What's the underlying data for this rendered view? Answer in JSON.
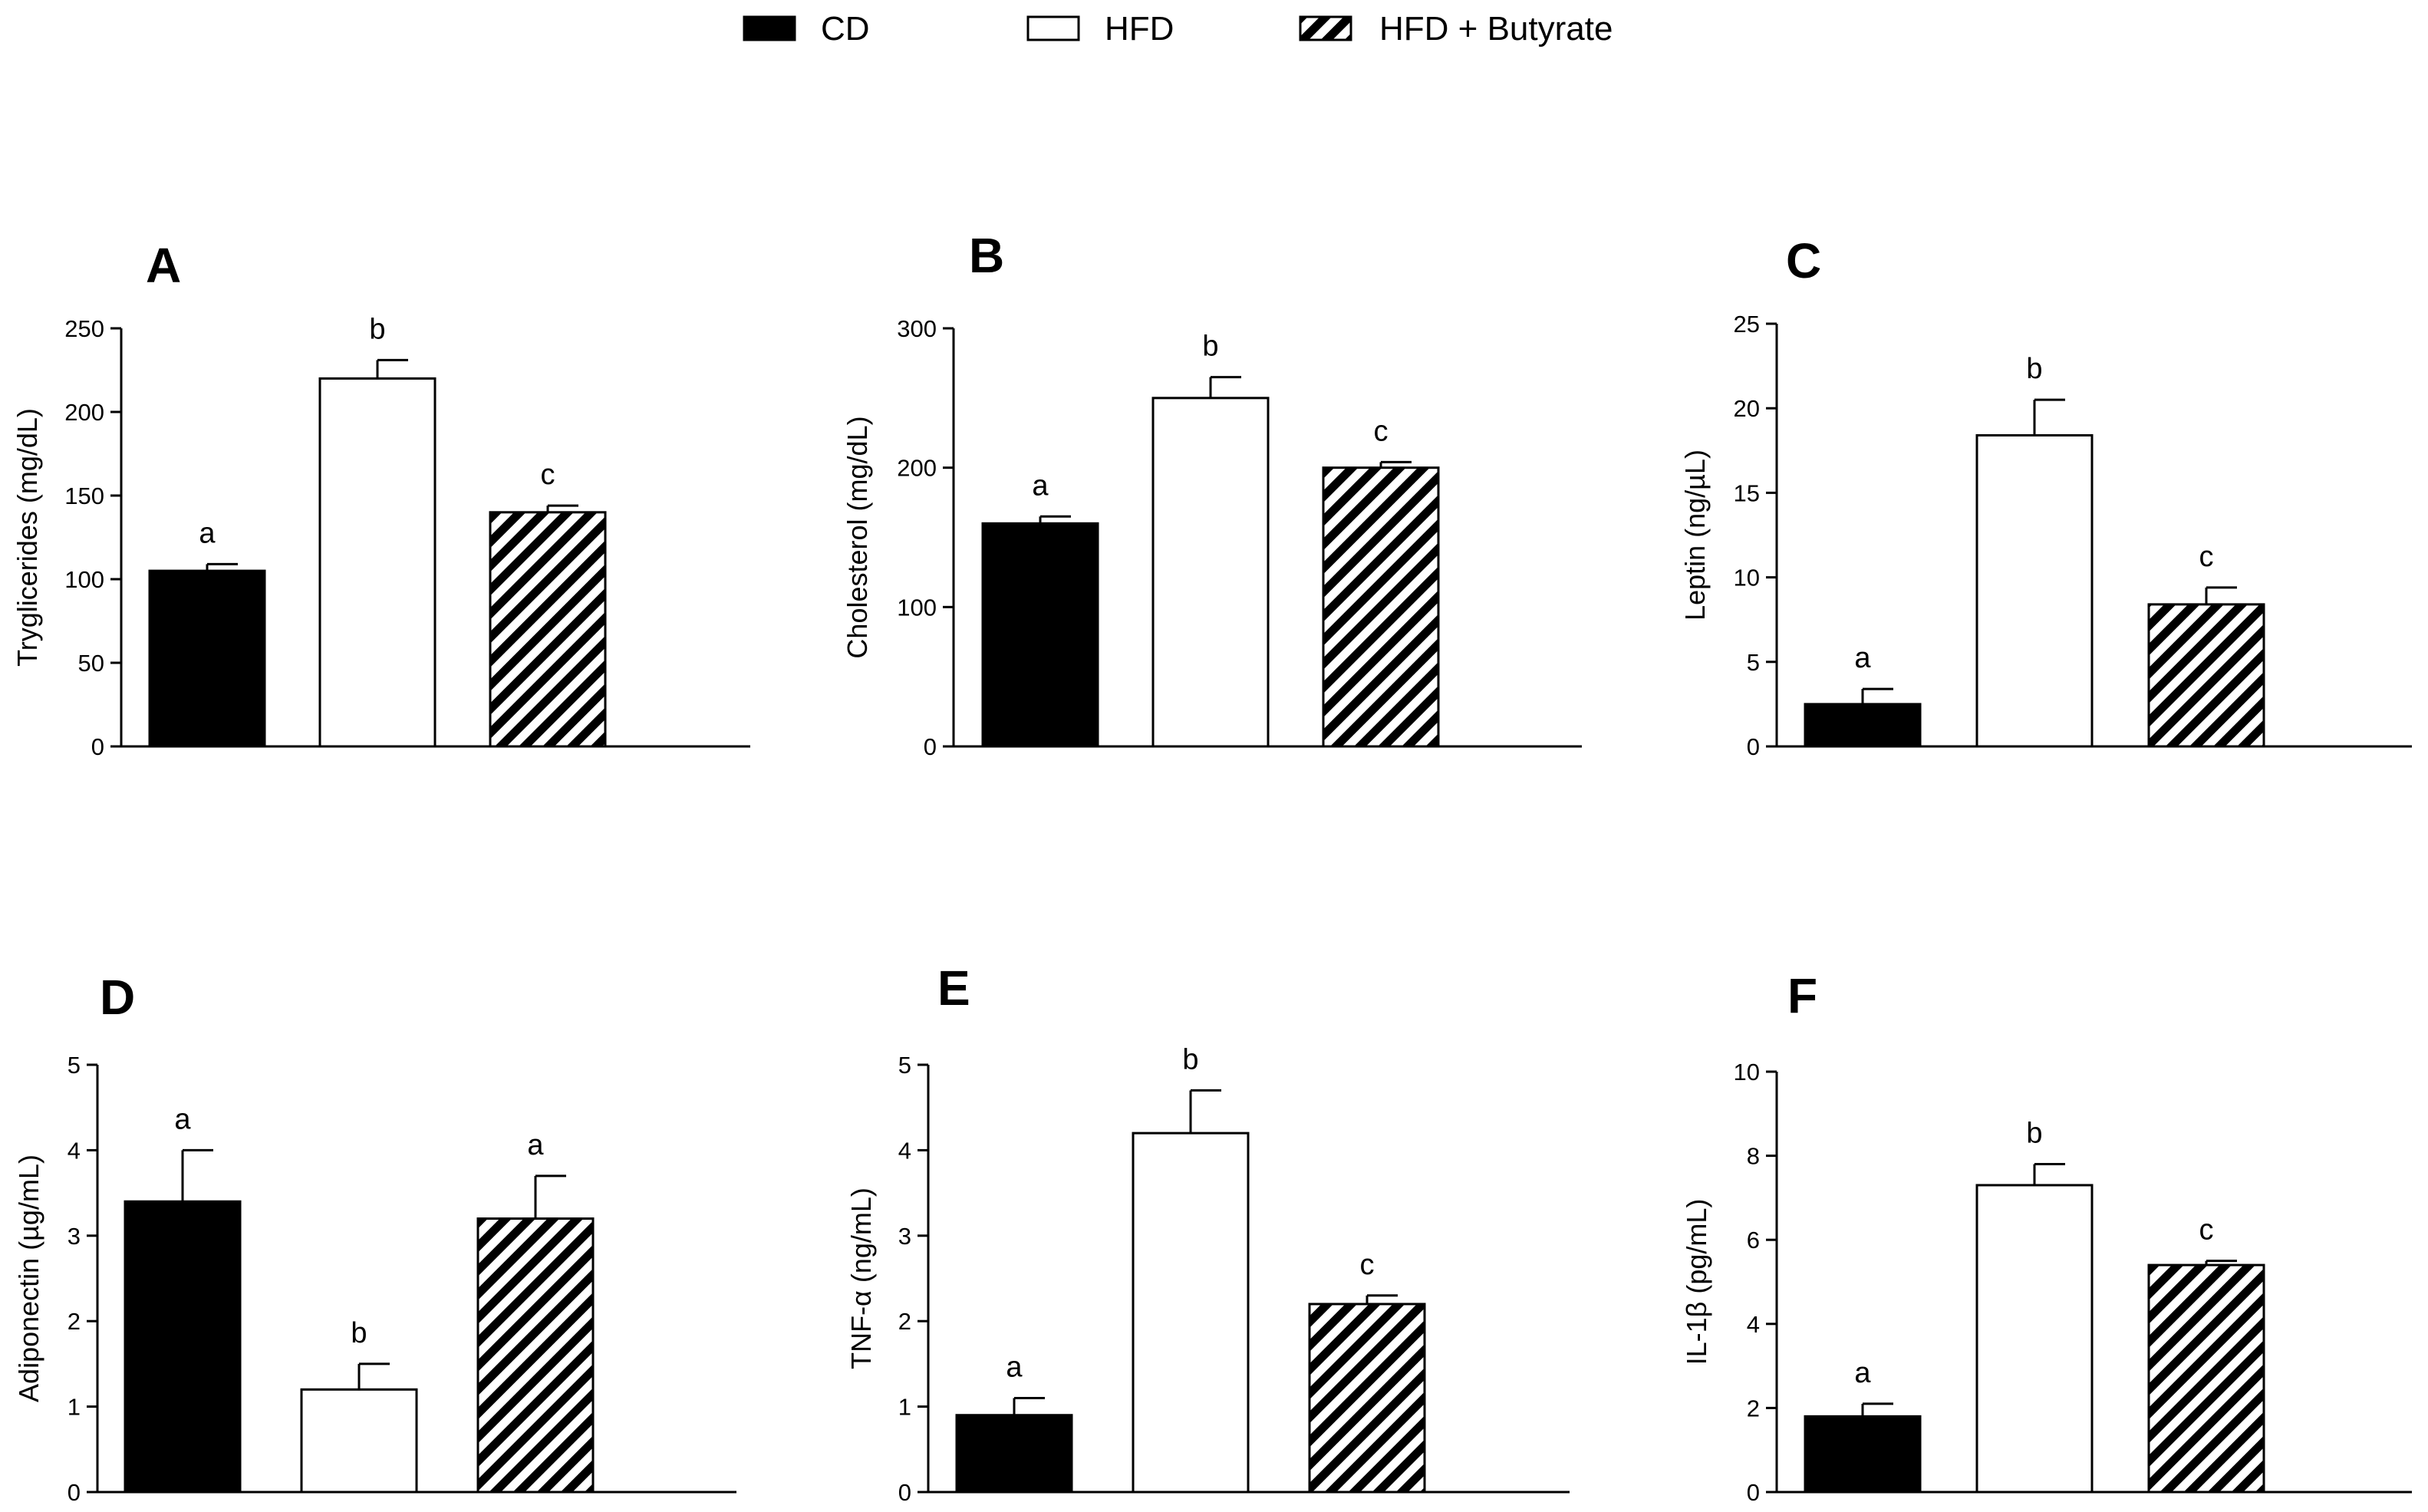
{
  "legend": {
    "items": [
      {
        "label": "CD",
        "pattern": "solid"
      },
      {
        "label": "HFD",
        "pattern": "open"
      },
      {
        "label": "HFD + Butyrate",
        "pattern": "hatched"
      }
    ]
  },
  "colors": {
    "bar_fill": "#000000",
    "open_fill": "#ffffff",
    "stroke": "#000000"
  },
  "chart_data": [
    {
      "type": "bar",
      "panel": "A",
      "ylabel": "Tryglicerides (mg/dL)",
      "ylim": [
        0,
        250
      ],
      "yticks": [
        "0",
        "50",
        "100",
        "150",
        "200",
        "250"
      ],
      "categories": [
        "CD",
        "HFD",
        "HFD + Butyrate"
      ],
      "values": [
        105,
        220,
        140
      ],
      "errors": [
        4,
        11,
        4
      ],
      "significance": [
        "a",
        "b",
        "c"
      ]
    },
    {
      "type": "bar",
      "panel": "B",
      "ylabel": "Cholesterol (mg/dL)",
      "ylim": [
        0,
        300
      ],
      "yticks": [
        "0",
        "100",
        "200",
        "300"
      ],
      "categories": [
        "CD",
        "HFD",
        "HFD + Butyrate"
      ],
      "values": [
        160,
        250,
        200
      ],
      "errors": [
        5,
        15,
        4
      ],
      "significance": [
        "a",
        "b",
        "c"
      ]
    },
    {
      "type": "bar",
      "panel": "C",
      "ylabel": "Leptin (ng/µL)",
      "ylim": [
        0,
        25
      ],
      "yticks": [
        "0",
        "5",
        "10",
        "15",
        "20",
        "25"
      ],
      "categories": [
        "CD",
        "HFD",
        "HFD + Butyrate"
      ],
      "values": [
        2.5,
        18.4,
        8.4
      ],
      "errors": [
        0.9,
        2.1,
        1.0
      ],
      "significance": [
        "a",
        "b",
        "c"
      ]
    },
    {
      "type": "bar",
      "panel": "D",
      "ylabel": "Adiponectin (µg/mL)",
      "ylim": [
        0,
        5
      ],
      "yticks": [
        "0",
        "1",
        "2",
        "3",
        "4",
        "5"
      ],
      "categories": [
        "CD",
        "HFD",
        "HFD + Butyrate"
      ],
      "values": [
        3.4,
        1.2,
        3.2
      ],
      "errors": [
        0.6,
        0.3,
        0.5
      ],
      "significance": [
        "a",
        "b",
        "a"
      ]
    },
    {
      "type": "bar",
      "panel": "E",
      "ylabel": "TNF-α (ng/mL)",
      "ylim": [
        0,
        5
      ],
      "yticks": [
        "0",
        "1",
        "2",
        "3",
        "4",
        "5"
      ],
      "categories": [
        "CD",
        "HFD",
        "HFD + Butyrate"
      ],
      "values": [
        0.9,
        4.2,
        2.2
      ],
      "errors": [
        0.2,
        0.5,
        0.1
      ],
      "significance": [
        "a",
        "b",
        "c"
      ]
    },
    {
      "type": "bar",
      "panel": "F",
      "ylabel": "IL-1β (pg/mL)",
      "ylim": [
        0,
        10
      ],
      "yticks": [
        "0",
        "2",
        "4",
        "6",
        "8",
        "10"
      ],
      "categories": [
        "CD",
        "HFD",
        "HFD + Butyrate"
      ],
      "values": [
        1.8,
        7.3,
        5.4
      ],
      "errors": [
        0.3,
        0.5,
        0.1
      ],
      "significance": [
        "a",
        "b",
        "c"
      ]
    }
  ]
}
